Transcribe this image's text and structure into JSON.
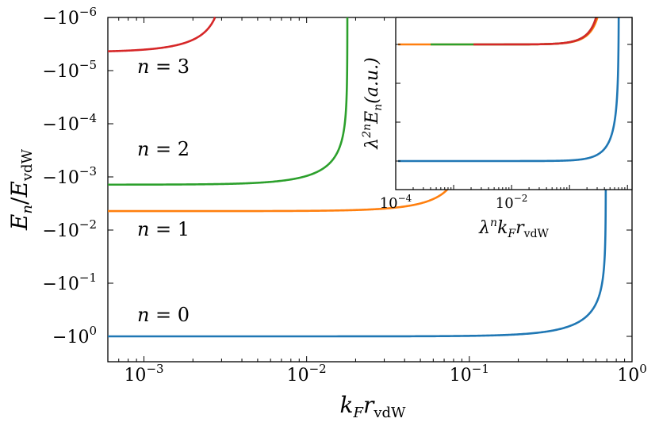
{
  "chart_data": [
    {
      "type": "line",
      "xscale": "log",
      "yscale": "symlog-negative",
      "xlim": [
        0.0006,
        1
      ],
      "ylim": [
        -3.0,
        -1e-06
      ],
      "xlabel": {
        "base": "k",
        "sub1": "F",
        "sym": "r",
        "sub2": "vdW"
      },
      "ylabel": {
        "base": "E",
        "sub1": "n",
        "sep": "/",
        "sym": "E",
        "sub2": "vdW"
      },
      "x_ticks": [
        {
          "value": 0.001,
          "base": "10",
          "exp": "−3"
        },
        {
          "value": 0.01,
          "base": "10",
          "exp": "−2"
        },
        {
          "value": 0.1,
          "base": "10",
          "exp": "−1"
        },
        {
          "value": 1,
          "base": "10",
          "exp": "0"
        }
      ],
      "y_ticks": [
        {
          "value": -1e-06,
          "base": "−10",
          "exp": "−6"
        },
        {
          "value": -1e-05,
          "base": "−10",
          "exp": "−5"
        },
        {
          "value": -0.0001,
          "base": "−10",
          "exp": "−4"
        },
        {
          "value": -0.001,
          "base": "−10",
          "exp": "−3"
        },
        {
          "value": -0.01,
          "base": "−10",
          "exp": "−2"
        },
        {
          "value": -0.1,
          "base": "−10",
          "exp": "−1"
        },
        {
          "value": -1,
          "base": "−10",
          "exp": "0"
        }
      ],
      "series": [
        {
          "label": "n = 0",
          "color": "#1f77b4",
          "E0": -1.0,
          "kc": 0.69,
          "label_x": 0.00095
        },
        {
          "label": "n = 1",
          "color": "#ff7f0e",
          "E0": -0.0044,
          "kc": 0.094,
          "label_x": 0.00095
        },
        {
          "label": "n = 2",
          "color": "#2ca02c",
          "E0": -0.0014,
          "kc": 0.0178,
          "label_x": 0.00095
        },
        {
          "label": "n = 3",
          "color": "#d62728",
          "E0": -4.5e-06,
          "kc": 0.0031,
          "label_x": 0.00095
        }
      ]
    },
    {
      "type": "line",
      "role": "inset",
      "xscale": "log",
      "xlim": [
        0.0001,
        1.2
      ],
      "xlabel": {
        "base": "λ",
        "sup": "n",
        "sym": "k",
        "sub1": "F",
        "sym2": "r",
        "sub2": "vdW"
      },
      "ylabel": {
        "base": "λ",
        "sup": "2n",
        "sym": "E",
        "sub1": "n",
        "unit": "(a.u.)"
      },
      "x_ticks": [
        {
          "value": 0.0001,
          "base": "10",
          "exp": "−4"
        },
        {
          "value": 0.01,
          "base": "10",
          "exp": "−2"
        }
      ],
      "series": [
        {
          "name": "n = 0",
          "color": "#1f77b4",
          "x_start": 0.00011,
          "kc": 0.71,
          "level": "bottom"
        },
        {
          "name": "n = 1",
          "color": "#ff7f0e",
          "x_start": 0.00011,
          "kc": 0.4,
          "level": "top"
        },
        {
          "name": "n = 2",
          "color": "#2ca02c",
          "x_start": 0.0004,
          "kc": 0.38,
          "level": "top"
        },
        {
          "name": "n = 3",
          "color": "#d62728",
          "x_start": 0.0022,
          "kc": 0.38,
          "level": "top"
        }
      ]
    }
  ]
}
